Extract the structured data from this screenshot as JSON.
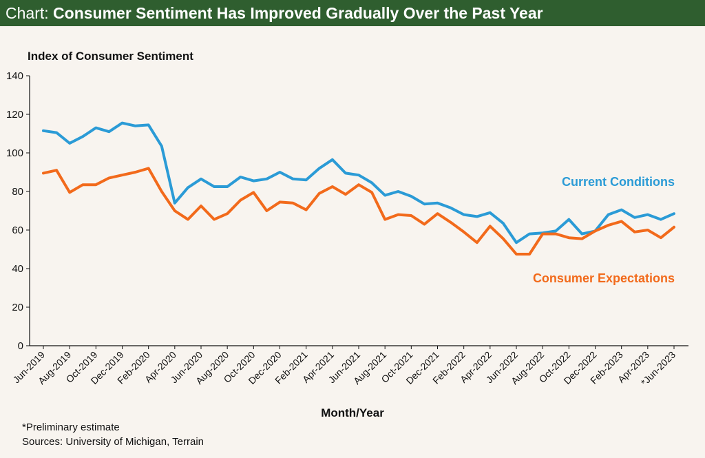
{
  "header": {
    "prefix": "Chart:",
    "title": "Consumer Sentiment Has Improved Gradually Over the Past Year"
  },
  "footnotes": {
    "note": "*Preliminary estimate",
    "sources": "Sources: University of Michigan, Terrain"
  },
  "chart_data": {
    "type": "line",
    "title": "Consumer Sentiment Has Improved Gradually Over the Past Year",
    "ylabel": "Index of Consumer Sentiment",
    "xlabel": "Month/Year",
    "ylim": [
      0,
      140
    ],
    "yticks": [
      0,
      20,
      40,
      60,
      80,
      100,
      120,
      140
    ],
    "grid": false,
    "x": [
      "Jun-2019",
      "Jul-2019",
      "Aug-2019",
      "Sep-2019",
      "Oct-2019",
      "Nov-2019",
      "Dec-2019",
      "Jan-2020",
      "Feb-2020",
      "Mar-2020",
      "Apr-2020",
      "May-2020",
      "Jun-2020",
      "Jul-2020",
      "Aug-2020",
      "Sep-2020",
      "Oct-2020",
      "Nov-2020",
      "Dec-2020",
      "Jan-2021",
      "Feb-2021",
      "Mar-2021",
      "Apr-2021",
      "May-2021",
      "Jun-2021",
      "Jul-2021",
      "Aug-2021",
      "Sep-2021",
      "Oct-2021",
      "Nov-2021",
      "Dec-2021",
      "Jan-2022",
      "Feb-2022",
      "Mar-2022",
      "Apr-2022",
      "May-2022",
      "Jun-2022",
      "Jul-2022",
      "Aug-2022",
      "Sep-2022",
      "Oct-2022",
      "Nov-2022",
      "Dec-2022",
      "Jan-2023",
      "Feb-2023",
      "Mar-2023",
      "Apr-2023",
      "May-2023",
      "Jun-2023"
    ],
    "tick_labels": [
      "Jun-2019",
      "Aug-2019",
      "Oct-2019",
      "Dec-2019",
      "Feb-2020",
      "Apr-2020",
      "Jun-2020",
      "Aug-2020",
      "Oct-2020",
      "Dec-2020",
      "Feb-2021",
      "Apr-2021",
      "Jun-2021",
      "Aug-2021",
      "Oct-2021",
      "Dec-2021",
      "Feb-2022",
      "Apr-2022",
      "Jun-2022",
      "Aug-2022",
      "Oct-2022",
      "Dec-2022",
      "Feb-2023",
      "Apr-2023",
      "*Jun-2023"
    ],
    "series": [
      {
        "name": "Current Conditions",
        "color": "#2b9bd6",
        "values": [
          111.5,
          110.5,
          105,
          108.5,
          113,
          111,
          115.5,
          114,
          114.5,
          103.5,
          74,
          82,
          86.5,
          82.5,
          82.5,
          87.5,
          85.5,
          86.5,
          90,
          86.5,
          86,
          92,
          96.5,
          89.5,
          88.5,
          84.5,
          78,
          80,
          77.5,
          73.5,
          74,
          71.5,
          68,
          67,
          69,
          63.5,
          53.5,
          58,
          58.5,
          59.5,
          65.5,
          58,
          59.5,
          68,
          70.5,
          66.5,
          68,
          65.5,
          68.5
        ]
      },
      {
        "name": "Consumer Expectations",
        "color": "#f26a1b",
        "values": [
          89.5,
          91,
          79.5,
          83.5,
          83.5,
          87,
          88.5,
          90,
          92,
          80,
          70,
          65.5,
          72.5,
          65.5,
          68.5,
          75.5,
          79.5,
          70,
          74.5,
          74,
          70.5,
          79,
          82.5,
          78.5,
          83.5,
          79.5,
          65.5,
          68,
          67.5,
          63,
          68.5,
          64,
          59,
          53.5,
          62,
          55.5,
          47.5,
          47.5,
          58,
          58,
          56,
          55.5,
          59.5,
          62.5,
          64.5,
          59,
          60,
          56,
          61.5
        ]
      }
    ]
  }
}
